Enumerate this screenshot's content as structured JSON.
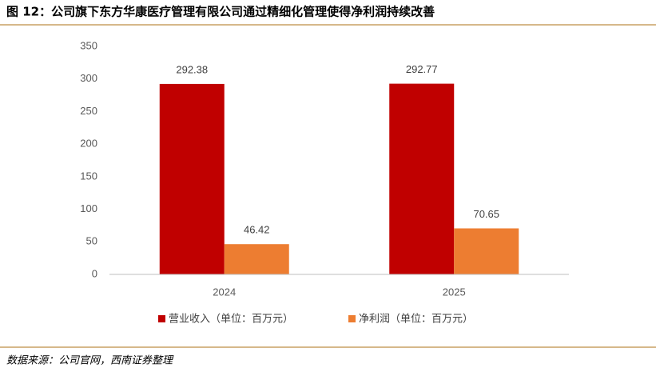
{
  "chart_data": {
    "type": "bar",
    "title": "图 12：公司旗下东方华康医疗管理有限公司通过精细化管理使得净利润持续改善",
    "source": "数据来源：公司官网，西南证券整理",
    "categories": [
      "2024",
      "2025"
    ],
    "series": [
      {
        "name": "营业收入（单位：百万元）",
        "color": "#c00000",
        "values": [
          292.38,
          292.77
        ]
      },
      {
        "name": "净利润（单位：百万元）",
        "color": "#ed7d31",
        "values": [
          46.42,
          70.65
        ]
      }
    ],
    "ylim": [
      0,
      350
    ],
    "yticks": [
      0,
      50,
      100,
      150,
      200,
      250,
      300,
      350
    ],
    "grid": false
  }
}
